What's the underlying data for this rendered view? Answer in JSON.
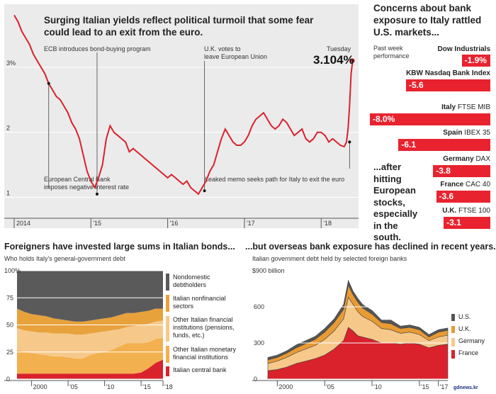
{
  "colors": {
    "red": "#d9222c",
    "bright_red": "#e8232f",
    "top_bg": "#ebebeb",
    "nondomestic": "#5a5a5a",
    "nonfinancial": "#e8a23c",
    "other_fin": "#f6c98b",
    "other_mon": "#f2b04e",
    "central_bank": "#d9222c",
    "us": "#555555",
    "uk": "#e89a33",
    "germany": "#f6c98b",
    "france": "#d9222c"
  },
  "chart_data": [
    {
      "type": "line",
      "title": "Surging Italian yields reflect political turmoil that some fear could lead to an exit from the euro.",
      "ylim": [
        0.7,
        3.75
      ],
      "yticks": [
        {
          "v": 1,
          "label": "1"
        },
        {
          "v": 2,
          "label": "2"
        },
        {
          "v": 3,
          "label": "3%"
        }
      ],
      "xlim": [
        2014.0,
        2018.45
      ],
      "xticks": [
        {
          "v": 2014.0,
          "label": "2014"
        },
        {
          "v": 2015.0,
          "label": "'15"
        },
        {
          "v": 2016.0,
          "label": "'16"
        },
        {
          "v": 2017.0,
          "label": "'17"
        },
        {
          "v": 2018.0,
          "label": "'18"
        }
      ],
      "last_label": "Tuesday",
      "last_value": "3.104%",
      "series": [
        {
          "x": [
            2014.0,
            2014.05,
            2014.1,
            2014.15,
            2014.2,
            2014.25,
            2014.3,
            2014.35,
            2014.4,
            2014.45,
            2014.5,
            2014.55,
            2014.6,
            2014.65,
            2014.7,
            2014.75,
            2014.8,
            2014.85,
            2014.9,
            2014.95,
            2015.0,
            2015.05,
            2015.1,
            2015.15,
            2015.2,
            2015.25,
            2015.3,
            2015.35,
            2015.4,
            2015.45,
            2015.5,
            2015.55,
            2015.6,
            2015.65,
            2015.7,
            2015.75,
            2015.8,
            2015.85,
            2015.9,
            2015.95,
            2016.0,
            2016.05,
            2016.1,
            2016.15,
            2016.2,
            2016.25,
            2016.3,
            2016.35,
            2016.4,
            2016.45,
            2016.5,
            2016.55,
            2016.6,
            2016.65,
            2016.7,
            2016.75,
            2016.8,
            2016.85,
            2016.9,
            2016.95,
            2017.0,
            2017.05,
            2017.1,
            2017.15,
            2017.2,
            2017.25,
            2017.3,
            2017.35,
            2017.4,
            2017.45,
            2017.5,
            2017.55,
            2017.6,
            2017.65,
            2017.7,
            2017.75,
            2017.8,
            2017.85,
            2017.9,
            2017.95,
            2018.0,
            2018.05,
            2018.1,
            2018.15,
            2018.2,
            2018.25,
            2018.3,
            2018.33,
            2018.35,
            2018.37,
            2018.39,
            2018.41
          ],
          "y": [
            3.8,
            3.7,
            3.55,
            3.45,
            3.35,
            3.2,
            3.1,
            3.0,
            2.9,
            2.75,
            2.65,
            2.55,
            2.5,
            2.4,
            2.3,
            2.15,
            2.05,
            1.9,
            1.65,
            1.4,
            1.25,
            1.15,
            1.3,
            1.5,
            1.9,
            2.1,
            2.0,
            1.95,
            1.9,
            1.85,
            1.7,
            1.75,
            1.7,
            1.65,
            1.6,
            1.55,
            1.5,
            1.45,
            1.4,
            1.35,
            1.3,
            1.35,
            1.3,
            1.25,
            1.2,
            1.25,
            1.15,
            1.1,
            1.05,
            1.15,
            1.25,
            1.4,
            1.5,
            1.7,
            1.9,
            2.05,
            1.95,
            1.85,
            1.8,
            1.8,
            1.85,
            1.95,
            2.1,
            2.2,
            2.25,
            2.3,
            2.2,
            2.1,
            2.05,
            2.1,
            2.2,
            2.15,
            2.05,
            1.95,
            2.0,
            2.05,
            1.9,
            1.85,
            1.9,
            2.0,
            2.0,
            1.95,
            1.85,
            1.9,
            1.85,
            1.8,
            1.78,
            1.85,
            2.05,
            2.4,
            2.9,
            3.1
          ]
        }
      ],
      "annotations": [
        {
          "text": "ECB introduces bond-buying program",
          "x": 2015.08,
          "y": 1.05
        },
        {
          "text": "U.K. votes to leave European Union",
          "x": 2016.48,
          "y": 1.1
        },
        {
          "text": "European Central Bank imposes negative interest rate",
          "x": 2014.45,
          "y": 2.75
        },
        {
          "text": "Leaked memo seeks path for Italy to exit the euro",
          "x": 2018.37,
          "y": 1.85
        }
      ]
    },
    {
      "type": "bar",
      "title": "Concerns about bank exposure to Italy rattled U.S. markets...",
      "subtitle": "Past week performance",
      "bridge_text": "...after hitting European stocks, especially in the south.",
      "categories": [
        {
          "country": "",
          "index": "Dow Industrials",
          "label": "-1.9%"
        },
        {
          "country": "",
          "index": "KBW Nasdaq Bank Index",
          "label": "-5.6"
        },
        {
          "country": "Italy",
          "index": "FTSE MIB",
          "label": "-8.0%"
        },
        {
          "country": "Spain",
          "index": "IBEX 35",
          "label": "-6.1"
        },
        {
          "country": "Germany",
          "index": "DAX",
          "label": "-3.8"
        },
        {
          "country": "France",
          "index": "CAC 40",
          "label": "-3.6"
        },
        {
          "country": "U.K.",
          "index": "FTSE 100",
          "label": "-3.1"
        }
      ],
      "values": [
        -1.9,
        -5.6,
        -8.0,
        -6.1,
        -3.8,
        -3.6,
        -3.1
      ]
    },
    {
      "type": "area",
      "title": "Foreigners have invested large sums in Italian bonds...",
      "subtitle": "Who holds Italy's general-government debt",
      "ylim": [
        0,
        100
      ],
      "yticks": [
        {
          "v": 0,
          "label": "0"
        },
        {
          "v": 25,
          "label": "25"
        },
        {
          "v": 50,
          "label": "50"
        },
        {
          "v": 75,
          "label": "75"
        },
        {
          "v": 100,
          "label": "100%"
        }
      ],
      "xlim": [
        1998,
        2018
      ],
      "xticks": [
        {
          "v": 2000,
          "label": "2000"
        },
        {
          "v": 2005,
          "label": "'05"
        },
        {
          "v": 2010,
          "label": "'10"
        },
        {
          "v": 2015,
          "label": "'15"
        },
        {
          "v": 2018,
          "label": "'18"
        }
      ],
      "x": [
        1998,
        1999,
        2000,
        2001,
        2002,
        2003,
        2004,
        2005,
        2006,
        2007,
        2008,
        2009,
        2010,
        2011,
        2012,
        2013,
        2014,
        2015,
        2016,
        2017,
        2018
      ],
      "series": [
        {
          "name": "Italian central bank",
          "values": [
            5,
            5,
            5,
            5,
            5,
            5,
            5,
            5,
            5,
            5,
            5,
            5,
            5,
            5,
            5,
            5,
            5,
            6,
            10,
            15,
            18
          ]
        },
        {
          "name": "Other Italian monetary financial institutions",
          "values": [
            22,
            20,
            19,
            18,
            17,
            16,
            16,
            15,
            14,
            14,
            17,
            19,
            20,
            22,
            25,
            28,
            28,
            27,
            24,
            22,
            20
          ]
        },
        {
          "name": "Other Italian financial institutions (pensions, funds, etc.)",
          "values": [
            20,
            20,
            20,
            20,
            21,
            21,
            21,
            22,
            22,
            22,
            20,
            19,
            19,
            18,
            16,
            15,
            16,
            17,
            17,
            16,
            16
          ]
        },
        {
          "name": "Italian nonfinancial sectors",
          "values": [
            18,
            17,
            16,
            16,
            15,
            14,
            13,
            12,
            12,
            12,
            12,
            12,
            12,
            12,
            13,
            13,
            12,
            12,
            12,
            12,
            11
          ]
        },
        {
          "name": "Nondomestic debtholders",
          "values": [
            35,
            38,
            40,
            41,
            42,
            44,
            45,
            46,
            47,
            47,
            46,
            45,
            44,
            43,
            41,
            39,
            39,
            38,
            37,
            35,
            35
          ]
        }
      ]
    },
    {
      "type": "area",
      "title": "...but overseas bank exposure has declined in recent years.",
      "subtitle": "Italian government debt held by selected foreign banks",
      "ylim": [
        0,
        900
      ],
      "yticks": [
        {
          "v": 0,
          "label": "0"
        },
        {
          "v": 300,
          "label": "300"
        },
        {
          "v": 600,
          "label": "600"
        },
        {
          "v": 900,
          "label": "$900 billion"
        }
      ],
      "xlim": [
        1999,
        2018
      ],
      "xticks": [
        {
          "v": 2000,
          "label": "2000"
        },
        {
          "v": 2005,
          "label": "'05"
        },
        {
          "v": 2010,
          "label": "'10"
        },
        {
          "v": 2015,
          "label": "'15"
        },
        {
          "v": 2017,
          "label": "'17"
        }
      ],
      "x": [
        1999,
        2000,
        2001,
        2002,
        2003,
        2004,
        2005,
        2006,
        2007,
        2007.5,
        2008,
        2008.5,
        2009,
        2010,
        2011,
        2012,
        2013,
        2014,
        2015,
        2016,
        2017,
        2018
      ],
      "series": [
        {
          "name": "France",
          "values": [
            70,
            80,
            100,
            130,
            150,
            170,
            200,
            250,
            320,
            430,
            400,
            360,
            350,
            330,
            300,
            300,
            290,
            300,
            290,
            260,
            280,
            290
          ]
        },
        {
          "name": "Germany",
          "values": [
            60,
            70,
            80,
            90,
            100,
            110,
            130,
            150,
            180,
            250,
            220,
            200,
            170,
            150,
            120,
            110,
            90,
            90,
            80,
            60,
            70,
            75
          ]
        },
        {
          "name": "U.K.",
          "values": [
            30,
            30,
            35,
            40,
            45,
            50,
            60,
            70,
            80,
            100,
            80,
            80,
            70,
            60,
            50,
            50,
            40,
            40,
            40,
            30,
            40,
            40
          ]
        },
        {
          "name": "U.S.",
          "values": [
            20,
            20,
            20,
            25,
            25,
            25,
            30,
            30,
            40,
            40,
            30,
            30,
            30,
            30,
            20,
            30,
            20,
            20,
            20,
            20,
            20,
            20
          ]
        }
      ]
    }
  ],
  "watermark": "gdnews.kr"
}
